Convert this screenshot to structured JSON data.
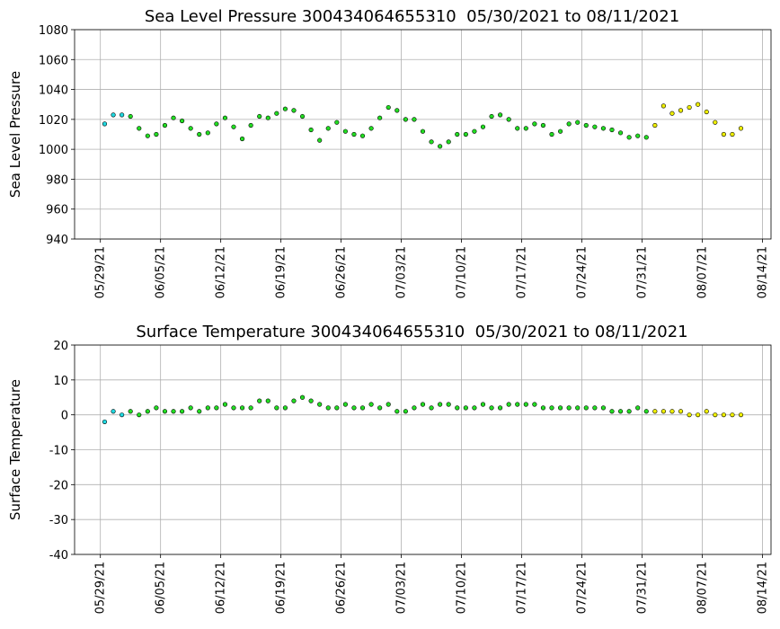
{
  "chart_data": [
    {
      "type": "scatter",
      "title": "Sea Level Pressure 300434064655310  05/30/2021 to 08/11/2021",
      "y_label": "Sea Level Pressure",
      "xlim": [
        "05/26/21",
        "08/15/21"
      ],
      "xticks": [
        "05/29/21",
        "06/05/21",
        "06/12/21",
        "06/19/21",
        "06/26/21",
        "07/03/21",
        "07/10/21",
        "07/17/21",
        "07/24/21",
        "07/31/21",
        "08/07/21",
        "08/14/21"
      ],
      "ylim": [
        940,
        1080
      ],
      "yticks": [
        940,
        960,
        980,
        1000,
        1020,
        1040,
        1060,
        1080
      ],
      "grid": true,
      "series": [
        {
          "color": "#20d8e0",
          "x": [
            "05/29/21",
            "05/30/21",
            "05/31/21"
          ],
          "values": [
            1017,
            1023,
            1023
          ]
        },
        {
          "color": "#22dd22",
          "x": [
            "06/01/21",
            "06/02/21",
            "06/03/21",
            "06/04/21",
            "06/05/21",
            "06/06/21",
            "06/07/21",
            "06/08/21",
            "06/09/21",
            "06/10/21",
            "06/11/21",
            "06/12/21",
            "06/13/21",
            "06/14/21",
            "06/15/21",
            "06/16/21",
            "06/17/21",
            "06/18/21",
            "06/19/21",
            "06/20/21",
            "06/21/21",
            "06/22/21",
            "06/23/21",
            "06/24/21",
            "06/25/21",
            "06/26/21",
            "06/27/21",
            "06/28/21",
            "06/29/21",
            "06/30/21",
            "07/01/21",
            "07/02/21",
            "07/03/21",
            "07/04/21",
            "07/05/21",
            "07/06/21",
            "07/07/21",
            "07/08/21",
            "07/09/21",
            "07/10/21",
            "07/11/21",
            "07/12/21",
            "07/13/21",
            "07/14/21",
            "07/15/21",
            "07/16/21",
            "07/17/21",
            "07/18/21",
            "07/19/21",
            "07/20/21",
            "07/21/21",
            "07/22/21",
            "07/23/21",
            "07/24/21",
            "07/25/21",
            "07/26/21",
            "07/27/21",
            "07/28/21",
            "07/29/21",
            "07/30/21",
            "07/31/21"
          ],
          "values": [
            1022,
            1014,
            1009,
            1010,
            1016,
            1021,
            1019,
            1014,
            1010,
            1011,
            1017,
            1021,
            1015,
            1007,
            1016,
            1022,
            1021,
            1024,
            1027,
            1026,
            1022,
            1013,
            1006,
            1014,
            1018,
            1012,
            1010,
            1009,
            1014,
            1021,
            1028,
            1026,
            1020,
            1020,
            1012,
            1005,
            1002,
            1005,
            1010,
            1010,
            1012,
            1015,
            1022,
            1023,
            1020,
            1014,
            1014,
            1017,
            1016,
            1010,
            1012,
            1017,
            1018,
            1016,
            1015,
            1014,
            1013,
            1011,
            1008,
            1009,
            1008
          ]
        },
        {
          "color": "#eeee00",
          "x": [
            "08/01/21",
            "08/02/21",
            "08/03/21",
            "08/04/21",
            "08/05/21",
            "08/06/21",
            "08/07/21",
            "08/08/21",
            "08/09/21",
            "08/10/21",
            "08/11/21"
          ],
          "values": [
            1016,
            1029,
            1024,
            1026,
            1028,
            1030,
            1025,
            1018,
            1010,
            1010,
            1014
          ]
        }
      ]
    },
    {
      "type": "scatter",
      "title": "Surface Temperature 300434064655310  05/30/2021 to 08/11/2021",
      "y_label": "Surface Temperature",
      "xlim": [
        "05/26/21",
        "08/15/21"
      ],
      "xticks": [
        "05/29/21",
        "06/05/21",
        "06/12/21",
        "06/19/21",
        "06/26/21",
        "07/03/21",
        "07/10/21",
        "07/17/21",
        "07/24/21",
        "07/31/21",
        "08/07/21",
        "08/14/21"
      ],
      "ylim": [
        -40,
        20
      ],
      "yticks": [
        -40,
        -30,
        -20,
        -10,
        0,
        10,
        20
      ],
      "grid": true,
      "series": [
        {
          "color": "#20d8e0",
          "x": [
            "05/29/21",
            "05/30/21",
            "05/31/21"
          ],
          "values": [
            -2,
            1,
            0
          ]
        },
        {
          "color": "#22dd22",
          "x": [
            "06/01/21",
            "06/02/21",
            "06/03/21",
            "06/04/21",
            "06/05/21",
            "06/06/21",
            "06/07/21",
            "06/08/21",
            "06/09/21",
            "06/10/21",
            "06/11/21",
            "06/12/21",
            "06/13/21",
            "06/14/21",
            "06/15/21",
            "06/16/21",
            "06/17/21",
            "06/18/21",
            "06/19/21",
            "06/20/21",
            "06/21/21",
            "06/22/21",
            "06/23/21",
            "06/24/21",
            "06/25/21",
            "06/26/21",
            "06/27/21",
            "06/28/21",
            "06/29/21",
            "06/30/21",
            "07/01/21",
            "07/02/21",
            "07/03/21",
            "07/04/21",
            "07/05/21",
            "07/06/21",
            "07/07/21",
            "07/08/21",
            "07/09/21",
            "07/10/21",
            "07/11/21",
            "07/12/21",
            "07/13/21",
            "07/14/21",
            "07/15/21",
            "07/16/21",
            "07/17/21",
            "07/18/21",
            "07/19/21",
            "07/20/21",
            "07/21/21",
            "07/22/21",
            "07/23/21",
            "07/24/21",
            "07/25/21",
            "07/26/21",
            "07/27/21",
            "07/28/21",
            "07/29/21",
            "07/30/21",
            "07/31/21"
          ],
          "values": [
            1,
            0,
            1,
            2,
            1,
            1,
            1,
            2,
            1,
            2,
            2,
            3,
            2,
            2,
            2,
            4,
            4,
            2,
            2,
            4,
            5,
            4,
            3,
            2,
            2,
            3,
            2,
            2,
            3,
            2,
            3,
            1,
            1,
            2,
            3,
            2,
            3,
            3,
            2,
            2,
            2,
            3,
            2,
            2,
            3,
            3,
            3,
            3,
            2,
            2,
            2,
            2,
            2,
            2,
            2,
            2,
            1,
            1,
            1,
            2,
            1
          ]
        },
        {
          "color": "#eeee00",
          "x": [
            "08/01/21",
            "08/02/21",
            "08/03/21",
            "08/04/21",
            "08/05/21",
            "08/06/21",
            "08/07/21",
            "08/08/21",
            "08/09/21",
            "08/10/21",
            "08/11/21"
          ],
          "values": [
            1,
            1,
            1,
            1,
            0,
            0,
            1,
            0,
            0,
            0,
            0
          ]
        }
      ]
    }
  ]
}
